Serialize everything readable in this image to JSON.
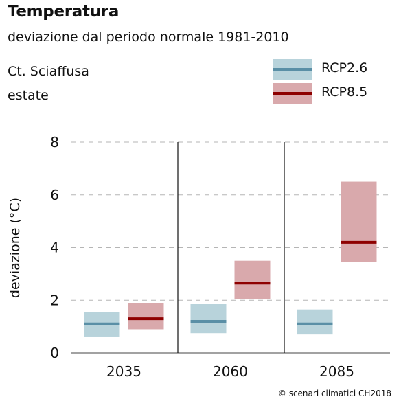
{
  "header": {
    "title": "Temperatura",
    "subtitle": "deviazione dal periodo normale 1981-2010",
    "region": "Ct. Sciaffusa",
    "season": "estate"
  },
  "legend": {
    "items": [
      {
        "label": "RCP2.6",
        "fill": "#b8d3db",
        "line": "#5a8fa6"
      },
      {
        "label": "RCP8.5",
        "fill": "#d9a9ac",
        "line": "#8e0000"
      }
    ]
  },
  "credit": "© scenari climatici CH2018",
  "chart_data": {
    "type": "bar",
    "title": "Temperatura",
    "ylabel": "deviazione (°C)",
    "xlabel": "",
    "ylim": [
      0,
      8
    ],
    "yticks": [
      0,
      2,
      4,
      6,
      8
    ],
    "grid": true,
    "categories": [
      "2035",
      "2060",
      "2085"
    ],
    "series": [
      {
        "name": "RCP2.6",
        "fill": "#b8d3db",
        "line": "#5a8fa6",
        "low": [
          0.6,
          0.75,
          0.7
        ],
        "median": [
          1.1,
          1.2,
          1.1
        ],
        "high": [
          1.55,
          1.85,
          1.65
        ]
      },
      {
        "name": "RCP8.5",
        "fill": "#d9a9ac",
        "line": "#8e0000",
        "low": [
          0.9,
          2.05,
          3.45
        ],
        "median": [
          1.3,
          2.65,
          4.2
        ],
        "high": [
          1.9,
          3.5,
          6.5
        ]
      }
    ]
  }
}
